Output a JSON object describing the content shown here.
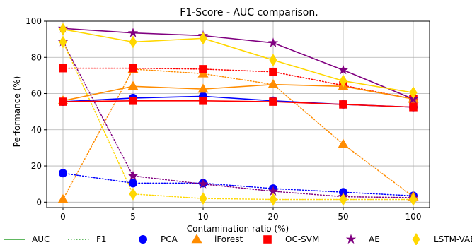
{
  "chart_data": {
    "type": "line",
    "title": "F1-Score - AUC comparison.",
    "xlabel": "Contamination ratio (%)",
    "ylabel": "Performance (%)",
    "categories": [
      "0",
      "5",
      "10",
      "20",
      "50",
      "100"
    ],
    "ylim": [
      -3,
      100
    ],
    "yticks": [
      0,
      20,
      40,
      60,
      80,
      100
    ],
    "grid": true,
    "legend_placement": "bottom",
    "legend": [
      {
        "label": "AUC",
        "kind": "line-solid",
        "color": "#2ca02c"
      },
      {
        "label": "F1",
        "kind": "line-dotted",
        "color": "#2ca02c"
      },
      {
        "label": "PCA",
        "kind": "marker",
        "marker": "circle",
        "color": "#0000ff"
      },
      {
        "label": "iForest",
        "kind": "marker",
        "marker": "triangle",
        "color": "#ff8c00"
      },
      {
        "label": "OC-SVM",
        "kind": "marker",
        "marker": "square",
        "color": "#ff0000"
      },
      {
        "label": "AE",
        "kind": "marker",
        "marker": "star",
        "color": "#800080"
      },
      {
        "label": "LSTM-VAE",
        "kind": "marker",
        "marker": "diamond",
        "color": "#ffd700"
      }
    ],
    "series": [
      {
        "name": "PCA",
        "metric": "AUC",
        "style": "solid",
        "color": "#0000ff",
        "marker": "circle",
        "values": [
          55.5,
          57.5,
          58.5,
          56,
          54,
          52.5
        ]
      },
      {
        "name": "PCA",
        "metric": "F1",
        "style": "dotted",
        "color": "#0000ff",
        "marker": "circle",
        "values": [
          16,
          10.5,
          10.5,
          7.5,
          5.5,
          3.5
        ]
      },
      {
        "name": "iForest",
        "metric": "AUC",
        "style": "solid",
        "color": "#ff8c00",
        "marker": "triangle",
        "values": [
          56,
          64,
          62.5,
          65,
          64,
          57
        ]
      },
      {
        "name": "iForest",
        "metric": "F1",
        "style": "dotted",
        "color": "#ff8c00",
        "marker": "triangle",
        "values": [
          1.5,
          73.5,
          71,
          65,
          32,
          3
        ]
      },
      {
        "name": "OC-SVM",
        "metric": "AUC",
        "style": "solid",
        "color": "#ff0000",
        "marker": "square",
        "values": [
          55.5,
          56,
          56,
          55.5,
          54,
          52.5
        ]
      },
      {
        "name": "OC-SVM",
        "metric": "F1",
        "style": "dotted",
        "color": "#ff0000",
        "marker": "square",
        "values": [
          74,
          74,
          73.5,
          72,
          64.5,
          57
        ]
      },
      {
        "name": "AE",
        "metric": "AUC",
        "style": "solid",
        "color": "#800080",
        "marker": "star",
        "values": [
          96,
          93.5,
          92,
          88,
          73,
          57
        ]
      },
      {
        "name": "AE",
        "metric": "F1",
        "style": "dotted",
        "color": "#800080",
        "marker": "star",
        "values": [
          88.5,
          14.5,
          10,
          6,
          3,
          2.5
        ]
      },
      {
        "name": "LSTM-VAE",
        "metric": "AUC",
        "style": "solid",
        "color": "#ffd700",
        "marker": "diamond",
        "values": [
          95.5,
          88.5,
          90.5,
          78.5,
          67,
          60.5
        ]
      },
      {
        "name": "LSTM-VAE",
        "metric": "F1",
        "style": "dotted",
        "color": "#ffd700",
        "marker": "diamond",
        "values": [
          88.5,
          4.5,
          2,
          1.5,
          1.5,
          1.5
        ]
      }
    ]
  }
}
